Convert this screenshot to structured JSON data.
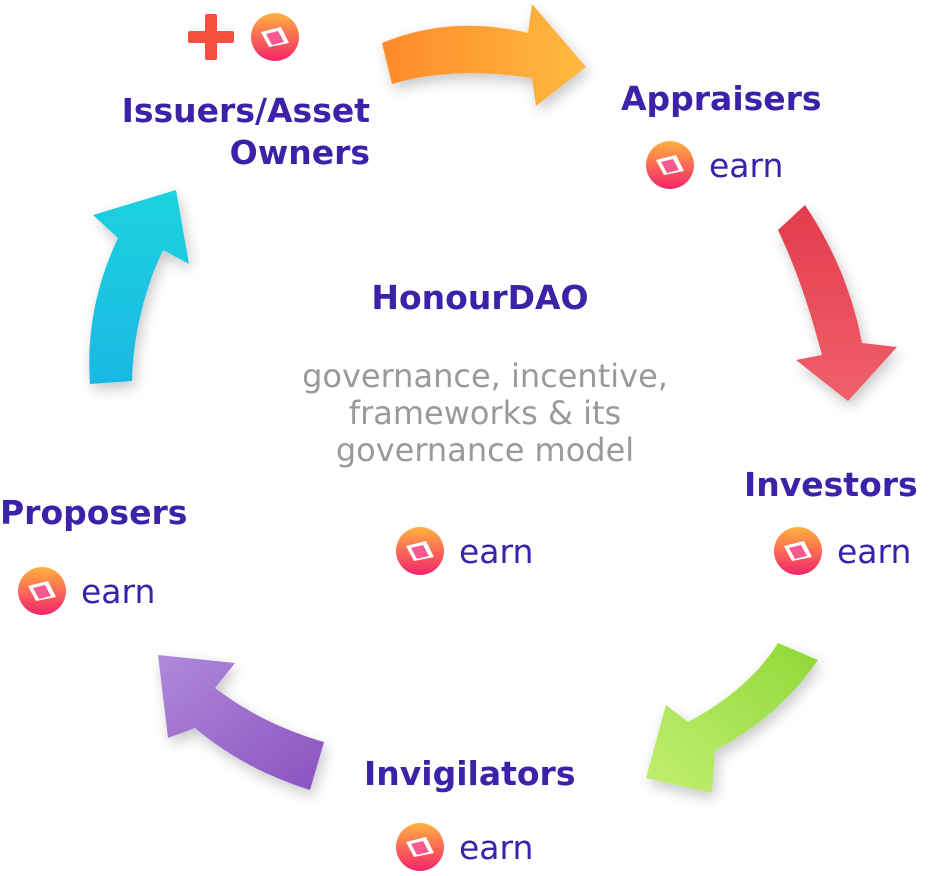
{
  "diagram": {
    "center": {
      "title": "HonourDAO",
      "description_lines": [
        "governance, incentive,",
        "frameworks & its",
        "governance model"
      ],
      "earn_label": "earn"
    },
    "nodes": {
      "issuers": {
        "label_lines": [
          "Issuers/Asset",
          "Owners"
        ],
        "badge": "plus-and-token"
      },
      "appraisers": {
        "label": "Appraisers",
        "earn_label": "earn"
      },
      "investors": {
        "label": "Investors",
        "earn_label": "earn"
      },
      "invigilators": {
        "label": "Invigilators",
        "earn_label": "earn"
      },
      "proposers": {
        "label": "Proposers",
        "earn_label": "earn"
      }
    },
    "arrows": [
      {
        "from": "Issuers/Asset Owners",
        "to": "Appraisers",
        "color": "#ff9a3c"
      },
      {
        "from": "Appraisers",
        "to": "Investors",
        "color": "#e9485f"
      },
      {
        "from": "Investors",
        "to": "Invigilators",
        "color": "#9be24a"
      },
      {
        "from": "Invigilators",
        "to": "Proposers",
        "color": "#9b6ac9"
      },
      {
        "from": "Proposers",
        "to": "Issuers/Asset Owners",
        "color": "#1ec8e0"
      }
    ],
    "colors": {
      "label": "#3b22a8",
      "description": "#9a9a9a",
      "token_gradient_start": "#ffb23e",
      "token_gradient_end": "#f5236b",
      "plus": "#f5503d"
    }
  }
}
